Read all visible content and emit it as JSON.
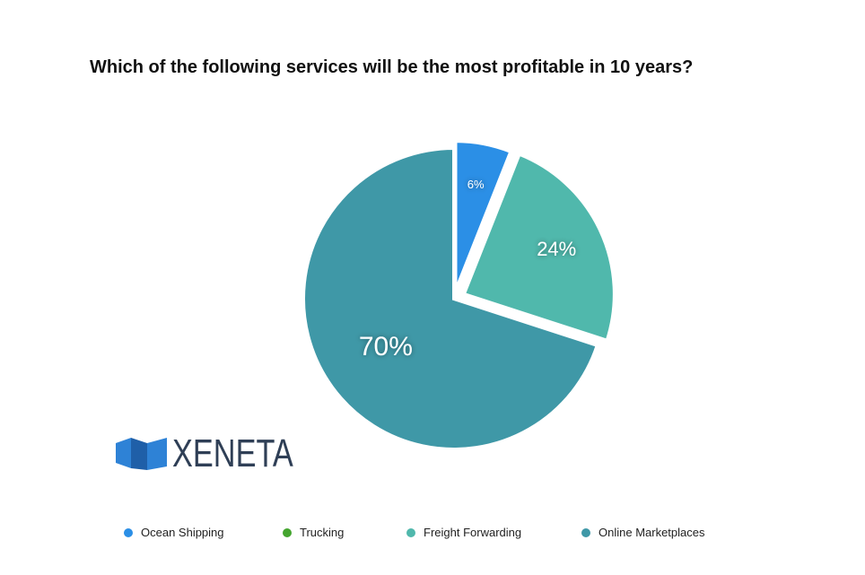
{
  "chart_data": {
    "type": "pie",
    "title": "Which of the following services will be the most profitable in 10 years?",
    "slices": [
      {
        "name": "Ocean Shipping",
        "value": 6,
        "label": "6%",
        "color": "#2b8fe6"
      },
      {
        "name": "Trucking",
        "value": 0,
        "label": "",
        "color": "#44a52f"
      },
      {
        "name": "Freight Forwarding",
        "value": 24,
        "label": "24%",
        "color": "#50b8ac"
      },
      {
        "name": "Online Marketplaces",
        "value": 70,
        "label": "70%",
        "color": "#3f98a7"
      }
    ],
    "legend_placement": "bottom",
    "exploded": [
      "Ocean Shipping",
      "Freight Forwarding"
    ]
  },
  "logo": {
    "text": "XENETA",
    "color": "#2f3f56",
    "mark_colors": [
      "#2e82d6",
      "#1f5fa8"
    ]
  }
}
